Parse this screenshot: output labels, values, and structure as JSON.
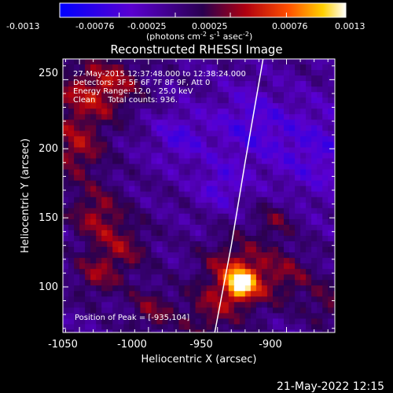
{
  "colorbar": {
    "ticks": [
      "-0.0013",
      "-0.00076",
      "-0.00025",
      "0.00025",
      "0.00076",
      "0.0013"
    ],
    "tick_values": [
      -0.0013,
      -0.00076,
      -0.00025,
      0.00025,
      0.00076,
      0.0013
    ],
    "range": [
      -0.0013,
      0.0013
    ],
    "unit_main": "(photons cm",
    "unit_exp1": "-2",
    "unit_mid": " s",
    "unit_exp2": "-1",
    "unit_asec": " asec",
    "unit_exp3": "-2",
    "unit_close": ")"
  },
  "chart_data": {
    "type": "heatmap",
    "title": "Reconstructed RHESSI Image",
    "xlabel": "Heliocentric X (arcsec)",
    "ylabel": "Heliocentric Y (arcsec)",
    "xlim": [
      -1062,
      -865
    ],
    "ylim": [
      67,
      265
    ],
    "xticks": [
      -1050,
      -1000,
      -950,
      -900
    ],
    "yticks": [
      100,
      150,
      200,
      250
    ],
    "info_lines": [
      "27-May-2015 12:37:48.000 to 12:38:24.000",
      "Detectors: 3F 5F 6F 7F 8F 9F, Att 0",
      "Energy Range: 12.0 - 25.0 keV",
      "Clean     Total counts: 936."
    ],
    "peak_label": "Position of Peak = [-935,104]",
    "peak": [
      -935,
      104
    ],
    "colormap": "blue-purple-red-yellow-white",
    "limb_line": [
      [
        -952,
        67
      ],
      [
        -940,
        130
      ],
      [
        -930,
        190
      ],
      [
        -917,
        265
      ]
    ]
  },
  "footer": {
    "date": "21-May-2022 12:15"
  }
}
